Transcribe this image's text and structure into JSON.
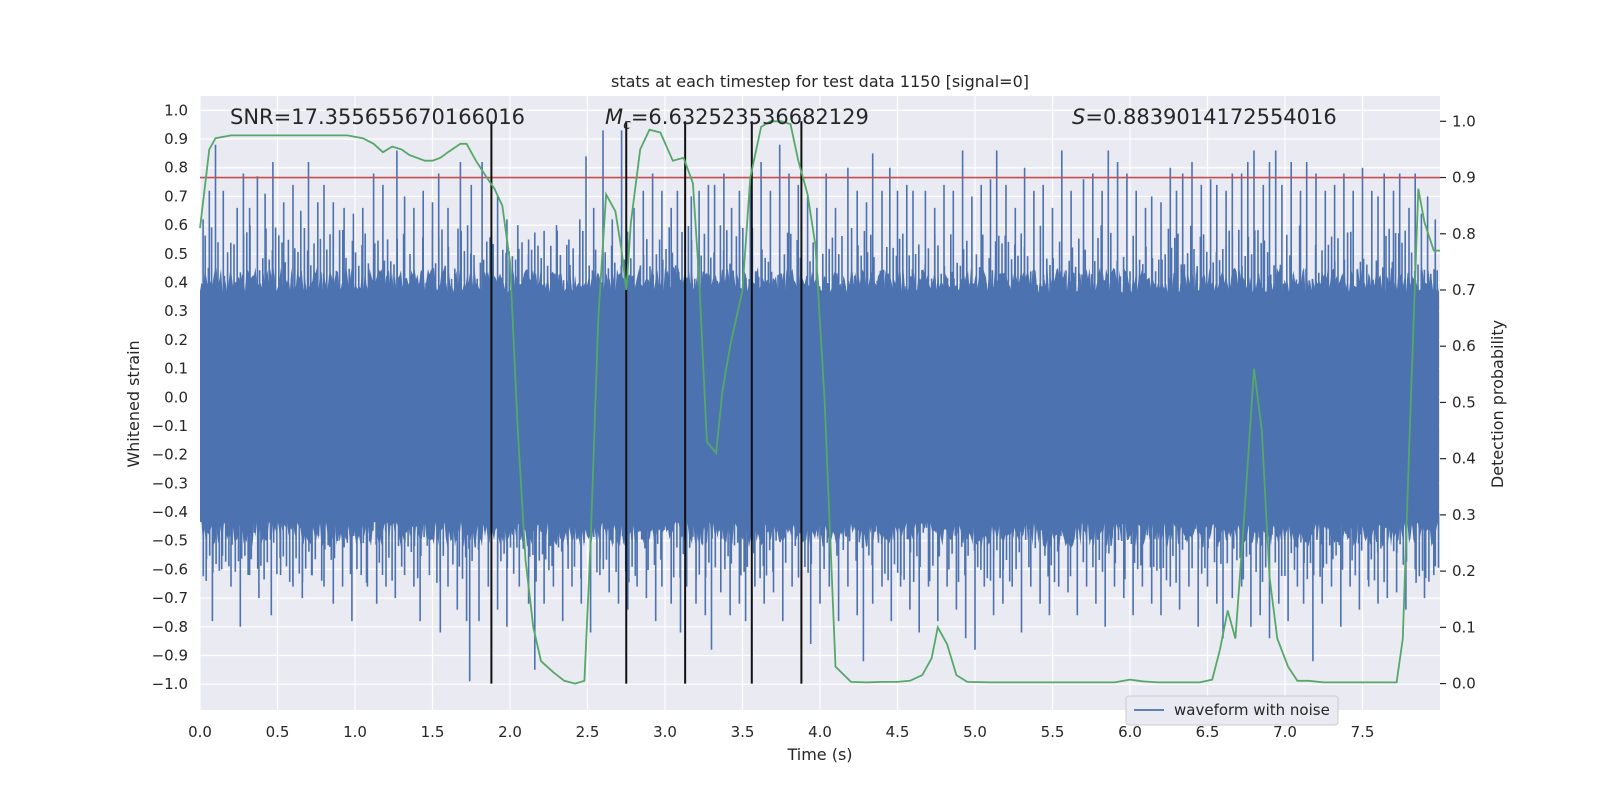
{
  "chart_data": {
    "type": "line",
    "title": "stats at each timestep for test data 1150 [signal=0]",
    "xlabel": "Time (s)",
    "ylabel_left": "Whitened strain",
    "ylabel_right": "Detection probability",
    "xlim": [
      0.0,
      8.0
    ],
    "ylim_left": [
      -1.09,
      1.05
    ],
    "ylim_right": [
      -0.047,
      1.045
    ],
    "x_ticks": [
      "0.0",
      "0.5",
      "1.0",
      "1.5",
      "2.0",
      "2.5",
      "3.0",
      "3.5",
      "4.0",
      "4.5",
      "5.0",
      "5.5",
      "6.0",
      "6.5",
      "7.0",
      "7.5"
    ],
    "x_tick_values": [
      0,
      0.5,
      1,
      1.5,
      2,
      2.5,
      3,
      3.5,
      4,
      4.5,
      5,
      5.5,
      6,
      6.5,
      7,
      7.5
    ],
    "y_ticks_left": [
      "1.0",
      "0.9",
      "0.8",
      "0.7",
      "0.6",
      "0.5",
      "0.4",
      "0.3",
      "0.2",
      "0.1",
      "0.0",
      "−0.1",
      "−0.2",
      "−0.3",
      "−0.4",
      "−0.5",
      "−0.6",
      "−0.7",
      "−0.8",
      "−0.9",
      "−1.0"
    ],
    "y_tick_values_left": [
      1.0,
      0.9,
      0.8,
      0.7,
      0.6,
      0.5,
      0.4,
      0.3,
      0.2,
      0.1,
      0.0,
      -0.1,
      -0.2,
      -0.3,
      -0.4,
      -0.5,
      -0.6,
      -0.7,
      -0.8,
      -0.9,
      -1.0
    ],
    "y_ticks_right": [
      "1.0",
      "0.9",
      "0.8",
      "0.7",
      "0.6",
      "0.5",
      "0.4",
      "0.3",
      "0.2",
      "0.1",
      "0.0"
    ],
    "y_tick_values_right": [
      1.0,
      0.9,
      0.8,
      0.7,
      0.6,
      0.5,
      0.4,
      0.3,
      0.2,
      0.1,
      0.0
    ],
    "annotations": {
      "snr": "SNR=17.355655670166016",
      "mc_symbol": "M",
      "mc_sub": "c",
      "mc_value": "=6.632523536682129",
      "s_symbol": "S",
      "s_value": "=0.8839014172554016"
    },
    "legend": [
      {
        "label": "waveform with noise",
        "color": "#4c72b0",
        "placement": "lower-right"
      }
    ],
    "threshold": {
      "value": 0.9,
      "axis": "right",
      "color": "#c44e52"
    },
    "vertical_lines": [
      1.88,
      2.75,
      3.13,
      3.56,
      3.88
    ],
    "waveform": {
      "name": "waveform with noise",
      "color": "#4c72b0",
      "core_band": [
        -0.42,
        0.35
      ],
      "n_samples": 8192,
      "peaks_upper": [
        [
          0.02,
          0.62
        ],
        [
          0.06,
          0.72
        ],
        [
          0.1,
          0.88
        ],
        [
          0.15,
          0.72
        ],
        [
          0.24,
          0.66
        ],
        [
          0.28,
          0.78
        ],
        [
          0.32,
          0.66
        ],
        [
          0.37,
          0.77
        ],
        [
          0.42,
          0.71
        ],
        [
          0.47,
          0.82
        ],
        [
          0.54,
          0.68
        ],
        [
          0.6,
          0.74
        ],
        [
          0.65,
          0.65
        ],
        [
          0.7,
          0.82
        ],
        [
          0.76,
          0.68
        ],
        [
          0.8,
          0.74
        ],
        [
          0.86,
          0.68
        ],
        [
          0.93,
          0.66
        ],
        [
          0.99,
          0.64
        ],
        [
          1.05,
          0.66
        ],
        [
          1.12,
          0.78
        ],
        [
          1.18,
          0.74
        ],
        [
          1.27,
          0.86
        ],
        [
          1.32,
          0.7
        ],
        [
          1.38,
          0.66
        ],
        [
          1.44,
          0.72
        ],
        [
          1.5,
          0.68
        ],
        [
          1.54,
          0.78
        ],
        [
          1.6,
          0.66
        ],
        [
          1.68,
          0.82
        ],
        [
          1.75,
          0.74
        ],
        [
          1.82,
          0.82
        ],
        [
          1.92,
          0.7
        ],
        [
          1.98,
          0.62
        ],
        [
          2.05,
          0.6
        ],
        [
          2.12,
          0.55
        ],
        [
          2.22,
          0.58
        ],
        [
          2.3,
          0.6
        ],
        [
          2.38,
          0.55
        ],
        [
          2.45,
          0.62
        ],
        [
          2.49,
          0.84
        ],
        [
          2.54,
          0.66
        ],
        [
          2.6,
          0.93
        ],
        [
          2.66,
          0.62
        ],
        [
          2.72,
          0.93
        ],
        [
          2.8,
          0.66
        ],
        [
          2.86,
          0.72
        ],
        [
          2.92,
          0.78
        ],
        [
          2.98,
          0.72
        ],
        [
          3.04,
          0.66
        ],
        [
          3.08,
          0.72
        ],
        [
          3.13,
          0.7
        ],
        [
          3.17,
          0.7
        ],
        [
          3.22,
          0.72
        ],
        [
          3.28,
          0.74
        ],
        [
          3.32,
          0.74
        ],
        [
          3.38,
          0.78
        ],
        [
          3.43,
          0.66
        ],
        [
          3.48,
          0.72
        ],
        [
          3.55,
          0.74
        ],
        [
          3.62,
          0.82
        ],
        [
          3.68,
          0.72
        ],
        [
          3.74,
          0.88
        ],
        [
          3.8,
          0.78
        ],
        [
          3.86,
          0.74
        ],
        [
          3.92,
          0.7
        ],
        [
          3.98,
          0.66
        ],
        [
          4.04,
          0.78
        ],
        [
          4.1,
          0.66
        ],
        [
          4.18,
          0.8
        ],
        [
          4.24,
          0.72
        ],
        [
          4.3,
          0.68
        ],
        [
          4.34,
          0.85
        ],
        [
          4.4,
          0.72
        ],
        [
          4.45,
          0.8
        ],
        [
          4.5,
          0.72
        ],
        [
          4.56,
          0.74
        ],
        [
          4.6,
          0.72
        ],
        [
          4.68,
          0.72
        ],
        [
          4.74,
          0.66
        ],
        [
          4.8,
          0.74
        ],
        [
          4.86,
          0.72
        ],
        [
          4.92,
          0.86
        ],
        [
          4.98,
          0.7
        ],
        [
          5.04,
          0.74
        ],
        [
          5.1,
          0.76
        ],
        [
          5.14,
          0.86
        ],
        [
          5.2,
          0.74
        ],
        [
          5.26,
          0.66
        ],
        [
          5.32,
          0.8
        ],
        [
          5.38,
          0.72
        ],
        [
          5.44,
          0.74
        ],
        [
          5.5,
          0.66
        ],
        [
          5.56,
          0.86
        ],
        [
          5.62,
          0.72
        ],
        [
          5.7,
          0.76
        ],
        [
          5.76,
          0.78
        ],
        [
          5.82,
          0.72
        ],
        [
          5.86,
          0.86
        ],
        [
          5.92,
          0.82
        ],
        [
          5.98,
          0.78
        ],
        [
          6.04,
          0.72
        ],
        [
          6.1,
          0.66
        ],
        [
          6.14,
          0.7
        ],
        [
          6.2,
          0.68
        ],
        [
          6.26,
          0.8
        ],
        [
          6.3,
          0.72
        ],
        [
          6.34,
          0.78
        ],
        [
          6.4,
          0.82
        ],
        [
          6.46,
          0.74
        ],
        [
          6.52,
          0.76
        ],
        [
          6.56,
          0.74
        ],
        [
          6.62,
          0.72
        ],
        [
          6.66,
          0.78
        ],
        [
          6.72,
          0.78
        ],
        [
          6.76,
          0.82
        ],
        [
          6.8,
          0.86
        ],
        [
          6.86,
          0.74
        ],
        [
          6.9,
          0.82
        ],
        [
          6.94,
          0.86
        ],
        [
          6.98,
          0.74
        ],
        [
          7.04,
          0.82
        ],
        [
          7.1,
          0.72
        ],
        [
          7.14,
          0.82
        ],
        [
          7.2,
          0.78
        ],
        [
          7.26,
          0.72
        ],
        [
          7.32,
          0.74
        ],
        [
          7.38,
          0.78
        ],
        [
          7.44,
          0.72
        ],
        [
          7.5,
          0.8
        ],
        [
          7.56,
          0.72
        ],
        [
          7.6,
          0.7
        ],
        [
          7.64,
          0.78
        ],
        [
          7.7,
          0.72
        ],
        [
          7.74,
          0.78
        ],
        [
          7.8,
          0.66
        ],
        [
          7.84,
          0.78
        ],
        [
          7.88,
          0.64
        ],
        [
          7.92,
          0.7
        ],
        [
          7.97,
          0.62
        ]
      ],
      "peaks_lower": [
        [
          0.04,
          -0.64
        ],
        [
          0.08,
          -0.78
        ],
        [
          0.14,
          -0.6
        ],
        [
          0.2,
          -0.66
        ],
        [
          0.26,
          -0.8
        ],
        [
          0.32,
          -0.62
        ],
        [
          0.38,
          -0.7
        ],
        [
          0.46,
          -0.76
        ],
        [
          0.52,
          -0.62
        ],
        [
          0.6,
          -0.66
        ],
        [
          0.66,
          -0.7
        ],
        [
          0.72,
          -0.62
        ],
        [
          0.8,
          -0.66
        ],
        [
          0.86,
          -0.72
        ],
        [
          0.92,
          -0.66
        ],
        [
          0.98,
          -0.78
        ],
        [
          1.04,
          -0.62
        ],
        [
          1.08,
          -0.66
        ],
        [
          1.14,
          -0.72
        ],
        [
          1.2,
          -0.66
        ],
        [
          1.26,
          -0.7
        ],
        [
          1.32,
          -0.62
        ],
        [
          1.38,
          -0.66
        ],
        [
          1.42,
          -0.78
        ],
        [
          1.48,
          -0.62
        ],
        [
          1.55,
          -0.82
        ],
        [
          1.6,
          -0.66
        ],
        [
          1.66,
          -0.74
        ],
        [
          1.72,
          -0.78
        ],
        [
          1.74,
          -0.99
        ],
        [
          1.8,
          -0.78
        ],
        [
          1.86,
          -0.66
        ],
        [
          1.92,
          -0.74
        ],
        [
          1.98,
          -0.8
        ],
        [
          2.06,
          -0.66
        ],
        [
          2.12,
          -0.72
        ],
        [
          2.16,
          -0.95
        ],
        [
          2.22,
          -0.72
        ],
        [
          2.28,
          -0.66
        ],
        [
          2.34,
          -0.78
        ],
        [
          2.4,
          -0.66
        ],
        [
          2.46,
          -0.72
        ],
        [
          2.52,
          -0.82
        ],
        [
          2.58,
          -0.62
        ],
        [
          2.64,
          -0.68
        ],
        [
          2.7,
          -0.72
        ],
        [
          2.76,
          -0.74
        ],
        [
          2.82,
          -0.66
        ],
        [
          2.88,
          -0.7
        ],
        [
          2.94,
          -0.78
        ],
        [
          2.98,
          -0.66
        ],
        [
          3.04,
          -0.72
        ],
        [
          3.1,
          -0.82
        ],
        [
          3.14,
          -0.66
        ],
        [
          3.2,
          -0.72
        ],
        [
          3.26,
          -0.76
        ],
        [
          3.3,
          -0.88
        ],
        [
          3.36,
          -0.68
        ],
        [
          3.42,
          -0.76
        ],
        [
          3.48,
          -0.72
        ],
        [
          3.52,
          -0.78
        ],
        [
          3.58,
          -0.66
        ],
        [
          3.64,
          -0.72
        ],
        [
          3.7,
          -0.68
        ],
        [
          3.76,
          -0.78
        ],
        [
          3.82,
          -0.66
        ],
        [
          3.88,
          -0.7
        ],
        [
          3.94,
          -0.86
        ],
        [
          4.0,
          -0.72
        ],
        [
          4.06,
          -0.66
        ],
        [
          4.12,
          -0.78
        ],
        [
          4.18,
          -0.66
        ],
        [
          4.24,
          -0.76
        ],
        [
          4.28,
          -0.92
        ],
        [
          4.34,
          -0.72
        ],
        [
          4.4,
          -0.66
        ],
        [
          4.46,
          -0.78
        ],
        [
          4.52,
          -0.66
        ],
        [
          4.58,
          -0.74
        ],
        [
          4.64,
          -0.82
        ],
        [
          4.7,
          -0.66
        ],
        [
          4.76,
          -0.78
        ],
        [
          4.82,
          -0.66
        ],
        [
          4.88,
          -0.74
        ],
        [
          4.94,
          -0.84
        ],
        [
          5.0,
          -0.88
        ],
        [
          5.06,
          -0.66
        ],
        [
          5.12,
          -0.76
        ],
        [
          5.18,
          -0.72
        ],
        [
          5.24,
          -0.66
        ],
        [
          5.3,
          -0.82
        ],
        [
          5.36,
          -0.66
        ],
        [
          5.42,
          -0.72
        ],
        [
          5.48,
          -0.76
        ],
        [
          5.54,
          -0.66
        ],
        [
          5.6,
          -0.68
        ],
        [
          5.66,
          -0.76
        ],
        [
          5.72,
          -0.66
        ],
        [
          5.78,
          -0.72
        ],
        [
          5.84,
          -0.8
        ],
        [
          5.9,
          -0.66
        ],
        [
          5.96,
          -0.7
        ],
        [
          6.02,
          -0.76
        ],
        [
          6.08,
          -0.66
        ],
        [
          6.14,
          -0.72
        ],
        [
          6.2,
          -0.76
        ],
        [
          6.26,
          -0.66
        ],
        [
          6.32,
          -0.74
        ],
        [
          6.38,
          -0.66
        ],
        [
          6.44,
          -0.8
        ],
        [
          6.5,
          -0.66
        ],
        [
          6.56,
          -0.72
        ],
        [
          6.6,
          -0.84
        ],
        [
          6.66,
          -0.7
        ],
        [
          6.72,
          -0.66
        ],
        [
          6.78,
          -0.8
        ],
        [
          6.84,
          -0.76
        ],
        [
          6.9,
          -0.84
        ],
        [
          6.96,
          -0.72
        ],
        [
          7.02,
          -0.78
        ],
        [
          7.08,
          -0.66
        ],
        [
          7.12,
          -0.72
        ],
        [
          7.18,
          -0.92
        ],
        [
          7.24,
          -0.72
        ],
        [
          7.3,
          -0.66
        ],
        [
          7.36,
          -0.8
        ],
        [
          7.42,
          -0.66
        ],
        [
          7.48,
          -0.74
        ],
        [
          7.54,
          -0.66
        ],
        [
          7.6,
          -0.72
        ],
        [
          7.66,
          -0.7
        ],
        [
          7.72,
          -0.68
        ],
        [
          7.78,
          -0.74
        ],
        [
          7.84,
          -0.6
        ],
        [
          7.9,
          -0.7
        ],
        [
          7.96,
          -0.62
        ]
      ]
    },
    "detection_probability": {
      "name": "detection probability",
      "color": "#55a868",
      "axis": "right",
      "x": [
        0.0,
        0.06,
        0.1,
        0.2,
        0.35,
        0.5,
        0.7,
        0.85,
        0.95,
        1.05,
        1.12,
        1.18,
        1.24,
        1.3,
        1.35,
        1.45,
        1.5,
        1.55,
        1.6,
        1.68,
        1.72,
        1.78,
        1.85,
        1.9,
        1.95,
        2.0,
        2.05,
        2.1,
        2.15,
        2.2,
        2.28,
        2.35,
        2.42,
        2.48,
        2.52,
        2.57,
        2.62,
        2.68,
        2.72,
        2.75,
        2.78,
        2.84,
        2.9,
        2.97,
        3.05,
        3.12,
        3.18,
        3.22,
        3.27,
        3.33,
        3.37,
        3.42,
        3.5,
        3.55,
        3.62,
        3.68,
        3.75,
        3.81,
        3.86,
        3.92,
        3.97,
        4.03,
        4.1,
        4.2,
        4.3,
        4.4,
        4.5,
        4.58,
        4.66,
        4.72,
        4.76,
        4.82,
        4.88,
        4.95,
        5.1,
        5.3,
        5.6,
        5.9,
        6.0,
        6.08,
        6.18,
        6.3,
        6.45,
        6.53,
        6.58,
        6.63,
        6.68,
        6.74,
        6.8,
        6.85,
        6.9,
        6.95,
        7.02,
        7.08,
        7.15,
        7.25,
        7.4,
        7.6,
        7.72,
        7.76,
        7.8,
        7.86,
        7.9,
        7.96,
        8.0
      ],
      "y": [
        0.81,
        0.95,
        0.97,
        0.975,
        0.975,
        0.975,
        0.975,
        0.975,
        0.975,
        0.97,
        0.96,
        0.945,
        0.955,
        0.95,
        0.94,
        0.93,
        0.93,
        0.935,
        0.945,
        0.96,
        0.96,
        0.93,
        0.9,
        0.88,
        0.85,
        0.75,
        0.45,
        0.22,
        0.1,
        0.04,
        0.02,
        0.005,
        0.0,
        0.005,
        0.25,
        0.65,
        0.87,
        0.84,
        0.77,
        0.7,
        0.82,
        0.95,
        0.985,
        0.98,
        0.93,
        0.935,
        0.89,
        0.72,
        0.43,
        0.41,
        0.52,
        0.6,
        0.7,
        0.9,
        0.99,
        1.0,
        1.0,
        0.995,
        0.93,
        0.87,
        0.78,
        0.5,
        0.03,
        0.003,
        0.002,
        0.003,
        0.003,
        0.005,
        0.015,
        0.045,
        0.1,
        0.07,
        0.015,
        0.003,
        0.002,
        0.002,
        0.002,
        0.002,
        0.007,
        0.004,
        0.002,
        0.002,
        0.002,
        0.007,
        0.06,
        0.13,
        0.08,
        0.31,
        0.56,
        0.45,
        0.19,
        0.08,
        0.03,
        0.005,
        0.005,
        0.002,
        0.002,
        0.002,
        0.002,
        0.08,
        0.41,
        0.88,
        0.82,
        0.77,
        0.77
      ]
    }
  }
}
